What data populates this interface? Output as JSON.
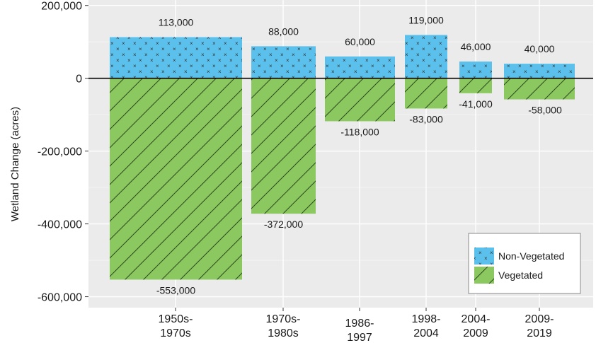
{
  "chart_data": {
    "type": "bar",
    "stacked": true,
    "categories": [
      "1950s-\n1970s",
      "1970s-\n1980s",
      "1986-\n1997",
      "1998-\n2004",
      "2004-\n2009",
      "2009-\n2019"
    ],
    "series": [
      {
        "name": "Non-Vegetated",
        "color": "#5bc0eb",
        "pattern": "dots-x",
        "values": [
          113000,
          88000,
          60000,
          119000,
          46000,
          40000
        ]
      },
      {
        "name": "Vegetated",
        "color": "#8cc860",
        "pattern": "diagonal-hatch",
        "values": [
          -553000,
          -372000,
          -118000,
          -83000,
          -41000,
          -58000
        ]
      }
    ],
    "data_labels": {
      "positive": [
        "113,000",
        "88,000",
        "60,000",
        "119,000",
        "46,000",
        "40,000"
      ],
      "negative": [
        "-553,000",
        "-372,000",
        "-118,000",
        "-83,000",
        "-41,000",
        "-58,000"
      ]
    },
    "ylabel": "Wetland Change (acres)",
    "xlabel": "",
    "ylim": [
      -630000,
      215000
    ],
    "y_ticks": [
      200000,
      0,
      -200000,
      -400000,
      -600000
    ],
    "y_tick_labels": [
      "200,000",
      "0",
      "-200,000",
      "-400,000",
      "-600,000"
    ],
    "grid": true,
    "background": "#ebebeb",
    "legend_position": "bottom-right",
    "legend": [
      "Non-Vegetated",
      "Vegetated"
    ]
  }
}
